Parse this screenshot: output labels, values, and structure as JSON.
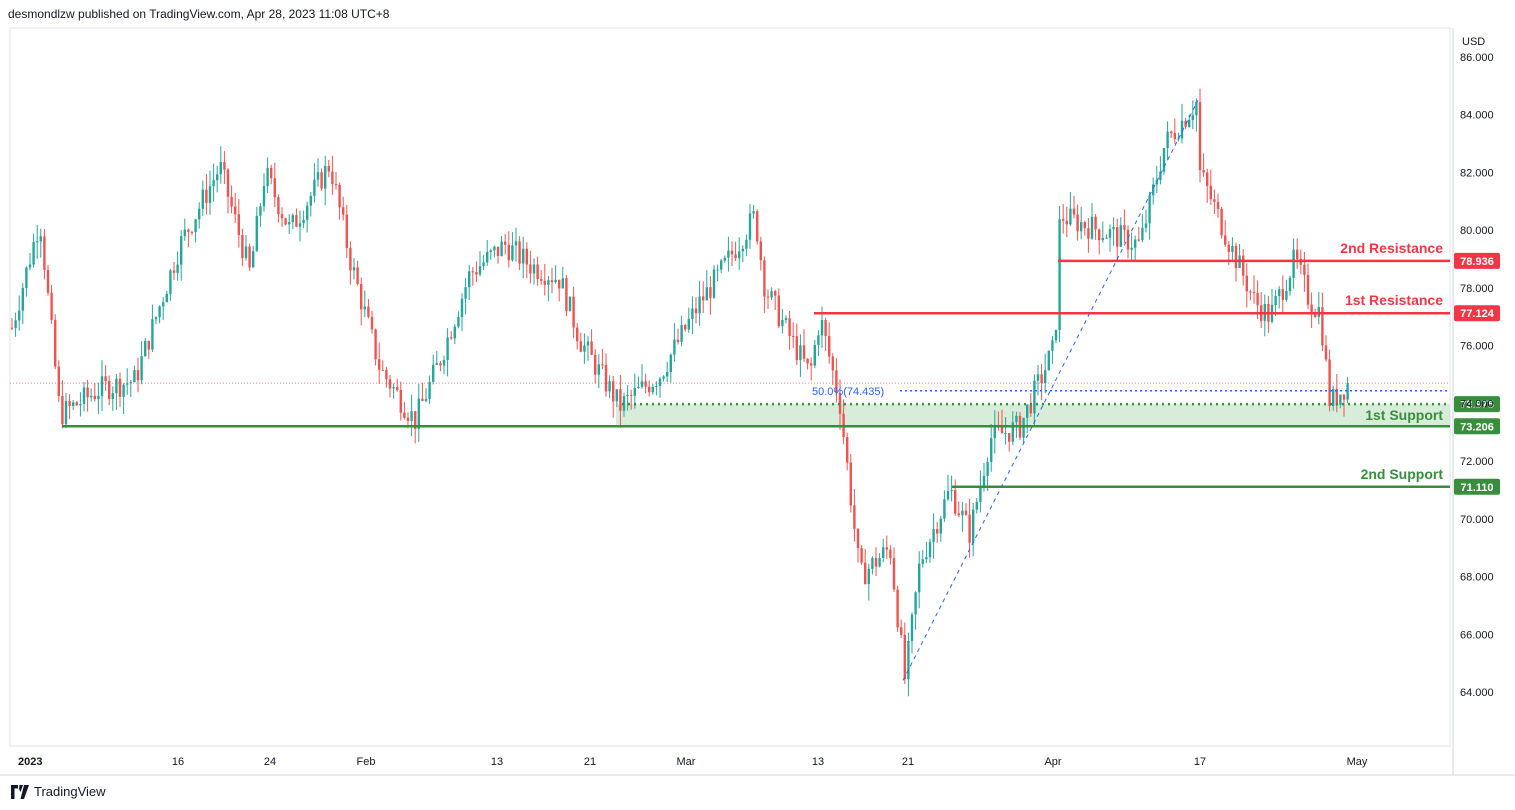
{
  "header": {
    "text": "desmondlzw published on TradingView.com, Apr 28, 2023 11:08 UTC+8"
  },
  "footer": {
    "brand": "TradingView",
    "logo_icon": "tradingview-logo-icon"
  },
  "chart_data": {
    "type": "candlestick",
    "title": "",
    "currency_label": "USD",
    "y_axis": {
      "range": [
        62.3,
        87.0
      ],
      "ticks": [
        "86.000",
        "84.000",
        "82.000",
        "80.000",
        "78.000",
        "76.000",
        "74.000",
        "72.000",
        "70.000",
        "68.000",
        "66.000",
        "64.000"
      ]
    },
    "x_axis": {
      "ticks": [
        "2023",
        "16",
        "24",
        "Feb",
        "13",
        "21",
        "Mar",
        "13",
        "21",
        "Apr",
        "17",
        "May"
      ]
    },
    "colors": {
      "up": "#26a69a",
      "down": "#ef5350",
      "resistance": "#f23645",
      "support": "#388e3c",
      "fib": "#2962ff",
      "support_zone": "#c8e6c9",
      "last_price": "#ef5350"
    },
    "series_path": [
      [
        0,
        75.0
      ],
      [
        40,
        80.4
      ],
      [
        60,
        73.6
      ],
      [
        100,
        74.5
      ],
      [
        135,
        74.8
      ],
      [
        180,
        79.5
      ],
      [
        220,
        82.2
      ],
      [
        250,
        78.5
      ],
      [
        265,
        82.0
      ],
      [
        290,
        80.0
      ],
      [
        330,
        82.3
      ],
      [
        350,
        79.0
      ],
      [
        380,
        75.2
      ],
      [
        415,
        73.4
      ],
      [
        440,
        75.5
      ],
      [
        470,
        78.5
      ],
      [
        505,
        79.5
      ],
      [
        530,
        78.8
      ],
      [
        560,
        78.3
      ],
      [
        580,
        76.2
      ],
      [
        620,
        73.9
      ],
      [
        660,
        75.0
      ],
      [
        700,
        77.5
      ],
      [
        720,
        78.5
      ],
      [
        755,
        80.5
      ],
      [
        765,
        78.0
      ],
      [
        790,
        76.3
      ],
      [
        810,
        75.0
      ],
      [
        820,
        77.0
      ],
      [
        840,
        74.0
      ],
      [
        860,
        68.0
      ],
      [
        890,
        69.0
      ],
      [
        905,
        64.4
      ],
      [
        920,
        68.5
      ],
      [
        950,
        71.0
      ],
      [
        970,
        69.5
      ],
      [
        990,
        72.8
      ],
      [
        1020,
        73.2
      ],
      [
        1055,
        76.0
      ],
      [
        1060,
        80.5
      ],
      [
        1100,
        80.0
      ],
      [
        1140,
        79.5
      ],
      [
        1165,
        83.0
      ],
      [
        1198,
        84.5
      ],
      [
        1200,
        82.0
      ],
      [
        1230,
        79.5
      ],
      [
        1255,
        77.5
      ],
      [
        1270,
        77.0
      ],
      [
        1295,
        79.0
      ],
      [
        1310,
        77.5
      ],
      [
        1320,
        77.2
      ],
      [
        1330,
        74.0
      ],
      [
        1348,
        74.7
      ]
    ],
    "levels": [
      {
        "label": "2nd Resistance",
        "value": 78.936,
        "value_label": "78.936",
        "type": "resistance"
      },
      {
        "label": "1st Resistance",
        "value": 77.124,
        "value_label": "77.124",
        "type": "resistance"
      },
      {
        "label": "1st Support",
        "value": 73.975,
        "value_label": "73.975",
        "type": "support_dotted"
      },
      {
        "label": "",
        "value": 73.206,
        "value_label": "73.206",
        "type": "support"
      },
      {
        "label": "2nd Support",
        "value": 71.11,
        "value_label": "71.110",
        "type": "support"
      }
    ],
    "fib_label": "50.0%(74.435)",
    "fib_value": 74.435,
    "fib_line": {
      "from": [
        903,
        64.4
      ],
      "to": [
        1198,
        84.5
      ]
    },
    "last_price": 74.7
  }
}
